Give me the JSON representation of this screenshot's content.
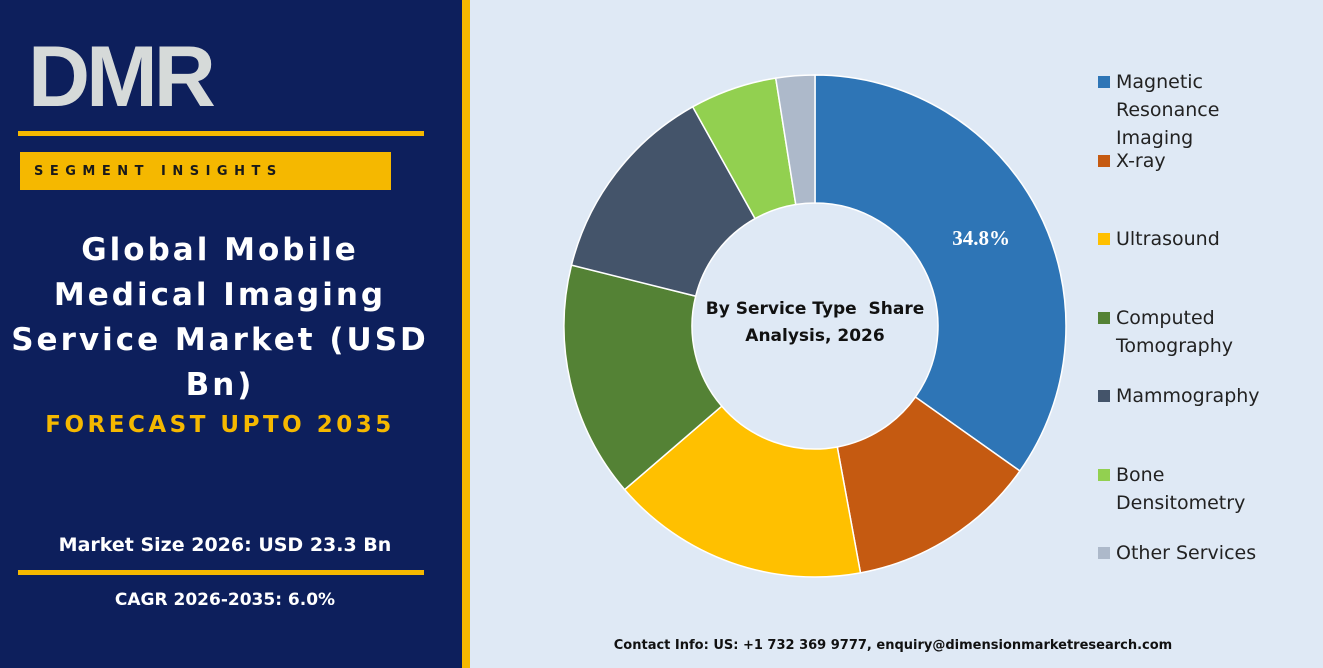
{
  "logo": "DMR",
  "segment_label": "SEGMENT INSIGHTS",
  "title": "Global Mobile Medical Imaging Service Market (USD Bn)",
  "subtitle": "FORECAST UPTO 2035",
  "market_size": "Market Size 2026: USD 23.3 Bn",
  "cagr": "CAGR 2026-2035: 6.0%",
  "contact": "Contact Info: US: +1 732 369 9777, enquiry@dimensionmarketresearch.com",
  "chart_data": {
    "type": "donut",
    "center_label": "By Service Type  Share Analysis, 2026",
    "categories": [
      "Magnetic Resonance Imaging",
      "X-ray",
      "Ultrasound",
      "Computed Tomography",
      "Mammography",
      "Bone Densitometry",
      "Other Services"
    ],
    "values": [
      34.8,
      12.3,
      16.6,
      15.2,
      13.0,
      5.6,
      2.5
    ],
    "value_labels": [
      "34.8%",
      null,
      null,
      null,
      null,
      null,
      null
    ],
    "colors": [
      "#2e75b6",
      "#c55a11",
      "#ffc000",
      "#548235",
      "#44546a",
      "#92d050",
      "#adb9ca"
    ],
    "legend": "right"
  }
}
